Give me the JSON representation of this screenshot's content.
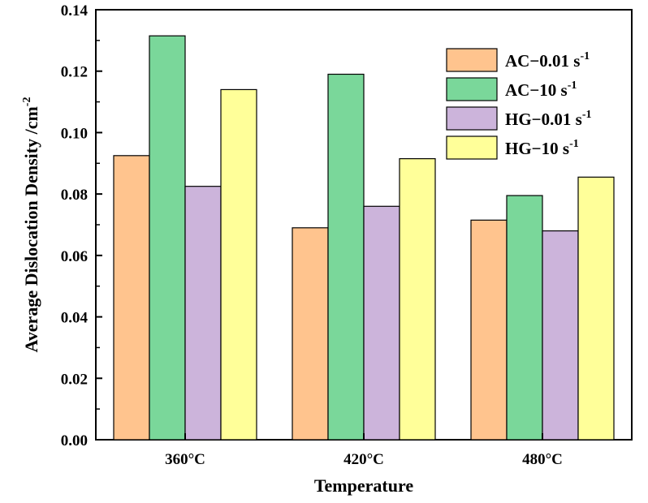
{
  "chart_data": {
    "type": "bar",
    "title": "",
    "xlabel": "Temperature",
    "ylabel": "Average Dislocation Density /cm",
    "ylabel_sup": "-2",
    "categories": [
      "360°C",
      "420°C",
      "480°C"
    ],
    "ylim": [
      0,
      0.14
    ],
    "yticks": [
      "0.00",
      "0.02",
      "0.04",
      "0.06",
      "0.08",
      "0.10",
      "0.12",
      "0.14"
    ],
    "legend_position": "top-right",
    "series": [
      {
        "name": "AC−0.01 s",
        "sup": "-1",
        "color": "#FFC48E",
        "values": [
          0.0925,
          0.069,
          0.0715
        ]
      },
      {
        "name": "AC−10 s",
        "sup": "-1",
        "color": "#7AD79A",
        "values": [
          0.1315,
          0.119,
          0.0795
        ]
      },
      {
        "name": "HG−0.01 s",
        "sup": "-1",
        "color": "#CCB4DB",
        "values": [
          0.0825,
          0.076,
          0.068
        ]
      },
      {
        "name": "HG−10 s",
        "sup": "-1",
        "color": "#FFFF99",
        "values": [
          0.114,
          0.0915,
          0.0855
        ]
      }
    ]
  }
}
